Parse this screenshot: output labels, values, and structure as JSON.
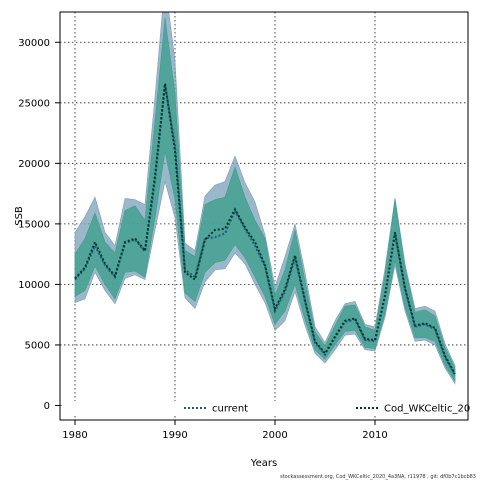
{
  "chart_data": {
    "type": "line",
    "title": "",
    "xlabel": "Years",
    "ylabel": "SSB",
    "xlim": [
      1978.5,
      2019.3
    ],
    "ylim": [
      -1200,
      32500
    ],
    "x_ticks": [
      1980,
      1990,
      2000,
      2010
    ],
    "y_ticks": [
      0,
      5000,
      10000,
      15000,
      20000,
      25000,
      30000
    ],
    "grid": true,
    "legend_position": "bottom",
    "footer": "stockassessment.org, Cod_WKCeltic_2020_4a3NA, r11978 , git: df0b7c1bcb83",
    "x": [
      1980,
      1981,
      1982,
      1983,
      1984,
      1985,
      1986,
      1987,
      1988,
      1989,
      1990,
      1991,
      1992,
      1993,
      1994,
      1995,
      1996,
      1997,
      1998,
      1999,
      2000,
      2001,
      2002,
      2003,
      2004,
      2005,
      2006,
      2007,
      2008,
      2009,
      2010,
      2011,
      2012,
      2013,
      2014,
      2015,
      2016,
      2017,
      2018
    ],
    "series": [
      {
        "name": "current",
        "color": "#1f5a7a",
        "band_color": "#7a9fb8",
        "values": [
          10400,
          11300,
          13200,
          11600,
          10600,
          13400,
          13700,
          12700,
          18500,
          26500,
          21500,
          11200,
          10600,
          13800,
          13900,
          14200,
          16100,
          14600,
          13200,
          11500,
          7800,
          9400,
          12200,
          8600,
          5200,
          4200,
          5600,
          6900,
          7100,
          5400,
          5300,
          9000,
          14200,
          9600,
          6500,
          6700,
          6300,
          4000,
          2500
        ],
        "lower": [
          8500,
          8800,
          11000,
          9500,
          8400,
          10500,
          10800,
          10400,
          14500,
          18500,
          15500,
          8900,
          8000,
          10200,
          11200,
          11300,
          12600,
          11700,
          10000,
          8500,
          6200,
          7000,
          9400,
          6600,
          4300,
          3500,
          4600,
          5800,
          5900,
          4600,
          4500,
          7300,
          11600,
          7800,
          5300,
          5400,
          5000,
          3100,
          1800
        ],
        "upper": [
          14300,
          15600,
          17200,
          14300,
          13200,
          17100,
          17000,
          16600,
          25500,
          35000,
          28500,
          13400,
          12800,
          17300,
          18200,
          18500,
          20600,
          18400,
          16800,
          14100,
          9800,
          12300,
          15000,
          11000,
          6500,
          5200,
          7000,
          8400,
          8600,
          6700,
          6500,
          11300,
          17100,
          11700,
          8000,
          8200,
          7800,
          5100,
          3300
        ]
      },
      {
        "name": "Cod_WKCeltic_20",
        "color": "#003a2c",
        "band_color": "#3e9f8c",
        "values": [
          10500,
          11400,
          13500,
          11700,
          10700,
          13500,
          13800,
          12800,
          19000,
          26600,
          21000,
          11000,
          10400,
          13700,
          14500,
          14600,
          16200,
          14700,
          13500,
          11600,
          8000,
          9600,
          12400,
          8700,
          5300,
          4300,
          5700,
          7000,
          7200,
          5500,
          5400,
          9100,
          14300,
          9700,
          6600,
          6800,
          6400,
          4100,
          2600
        ],
        "lower": [
          9000,
          9500,
          11500,
          10000,
          8800,
          11000,
          11100,
          10600,
          15500,
          21000,
          17000,
          9300,
          8600,
          11000,
          11800,
          12000,
          13300,
          12200,
          10600,
          9000,
          6700,
          7800,
          10000,
          7100,
          4600,
          3800,
          5000,
          6100,
          6200,
          4800,
          4700,
          7600,
          12000,
          8100,
          5600,
          5600,
          5300,
          3300,
          2000
        ],
        "upper": [
          12500,
          13800,
          15900,
          13500,
          12600,
          16100,
          16500,
          15300,
          23500,
          32000,
          25800,
          12800,
          12300,
          16600,
          17000,
          17200,
          19700,
          17200,
          15300,
          13800,
          9100,
          11200,
          14500,
          10300,
          6100,
          4900,
          6600,
          8200,
          8300,
          6500,
          6200,
          10800,
          17100,
          11400,
          7700,
          7900,
          7400,
          4800,
          3100
        ]
      }
    ]
  }
}
